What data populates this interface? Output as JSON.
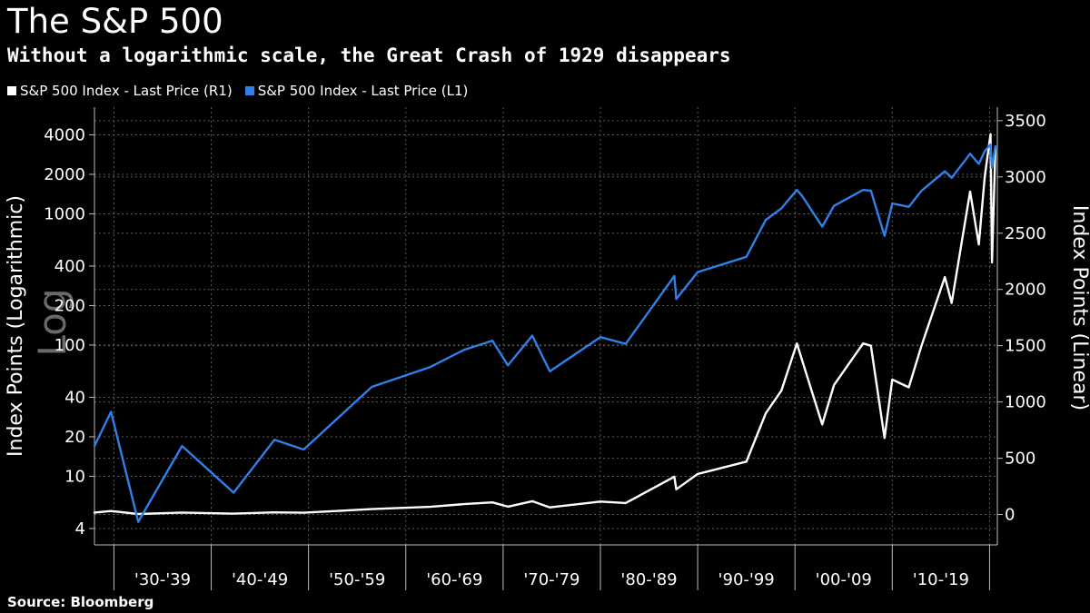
{
  "header": {
    "title": "The S&P 500",
    "subtitle": "Without a logarithmic scale, the Great Crash of 1929 disappears"
  },
  "legend": {
    "items": [
      {
        "label": "S&P 500 Index - Last Price (R1)",
        "color": "#ffffff"
      },
      {
        "label": "S&P 500 Index - Last Price (L1)",
        "color": "#2f80e8"
      }
    ]
  },
  "footer": {
    "source": "Source: Bloomberg"
  },
  "watermark": "Log",
  "chart_data": {
    "type": "line",
    "xlabel": "",
    "x_categories": [
      "'30-'39",
      "'40-'49",
      "'50-'59",
      "'60-'69",
      "'70-'79",
      "'80-'89",
      "'90-'99",
      "'00-'09",
      "'10-'19"
    ],
    "xlim": [
      1928.0,
      2020.8
    ],
    "grid": true,
    "left_axis": {
      "label": "Index Points (Logarithmic)",
      "scale": "log",
      "ticks": [
        4,
        10,
        20,
        40,
        100,
        200,
        400,
        1000,
        2000,
        4000
      ],
      "ylim": [
        3.0,
        6500
      ]
    },
    "right_axis": {
      "label": "Index Points (Linear)",
      "scale": "linear",
      "ticks": [
        0,
        500,
        1000,
        1500,
        2000,
        2500,
        3000,
        3500
      ],
      "ylim": [
        -270,
        3620
      ]
    },
    "series": [
      {
        "name": "S&P 500 Index - Last Price (R1)",
        "axis": "right",
        "color": "#ffffff",
        "x": [
          1928.0,
          1929.7,
          1932.5,
          1937.0,
          1942.3,
          1946.5,
          1949.5,
          1956.5,
          1962.5,
          1966.0,
          1968.9,
          1970.5,
          1973.0,
          1974.8,
          1980.0,
          1982.6,
          1987.6,
          1987.8,
          1990.0,
          1995.0,
          1997.0,
          1998.6,
          2000.2,
          2000.7,
          2002.8,
          2004.0,
          2007.0,
          2007.8,
          2009.2,
          2010.0,
          2011.7,
          2013.0,
          2015.4,
          2016.1,
          2018.0,
          2018.9,
          2019.5,
          2020.1,
          2020.25,
          2020.6
        ],
        "y": [
          17,
          31,
          4.5,
          17,
          7.5,
          19,
          16,
          48,
          68,
          92,
          108,
          70,
          118,
          63,
          115,
          102,
          336,
          224,
          360,
          470,
          900,
          1100,
          1520,
          1380,
          800,
          1150,
          1520,
          1500,
          680,
          1200,
          1130,
          1500,
          2110,
          1880,
          2870,
          2400,
          3000,
          3380,
          2240,
          3270
        ]
      },
      {
        "name": "S&P 500 Index - Last Price (L1)",
        "axis": "left",
        "color": "#2f80e8",
        "x": [
          1928.0,
          1929.7,
          1932.5,
          1937.0,
          1942.3,
          1946.5,
          1949.5,
          1956.5,
          1962.5,
          1966.0,
          1968.9,
          1970.5,
          1973.0,
          1974.8,
          1980.0,
          1982.6,
          1987.6,
          1987.8,
          1990.0,
          1995.0,
          1997.0,
          1998.6,
          2000.2,
          2000.7,
          2002.8,
          2004.0,
          2007.0,
          2007.8,
          2009.2,
          2010.0,
          2011.7,
          2013.0,
          2015.4,
          2016.1,
          2018.0,
          2018.9,
          2019.5,
          2020.1,
          2020.25,
          2020.6
        ],
        "y": [
          17,
          31,
          4.5,
          17,
          7.5,
          19,
          16,
          48,
          68,
          92,
          108,
          70,
          118,
          63,
          115,
          102,
          336,
          224,
          360,
          470,
          900,
          1100,
          1520,
          1380,
          800,
          1150,
          1520,
          1500,
          680,
          1200,
          1130,
          1500,
          2110,
          1880,
          2870,
          2400,
          3000,
          3380,
          2240,
          3270
        ]
      }
    ]
  }
}
